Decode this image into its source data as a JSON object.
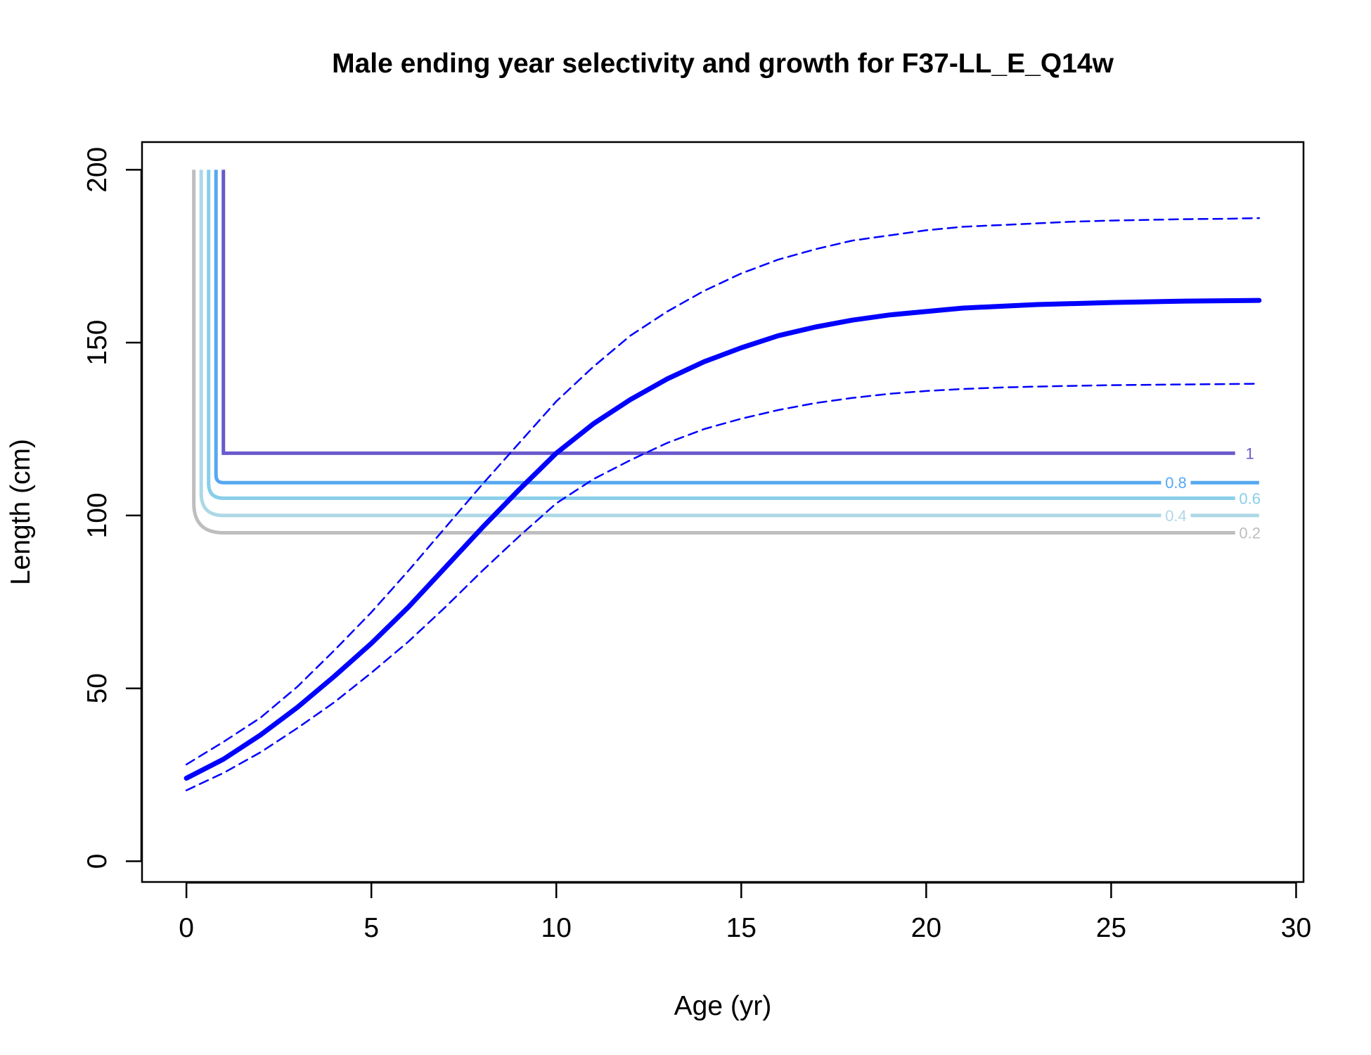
{
  "chart_data": {
    "type": "line",
    "title": "Male ending year selectivity and growth for F37-LL_E_Q14w",
    "xlabel": "Age (yr)",
    "ylabel": "Length (cm)",
    "xlim": [
      -1.2,
      30.2
    ],
    "ylim": [
      -6,
      208
    ],
    "xticks": [
      0,
      5,
      10,
      15,
      20,
      25,
      30
    ],
    "yticks": [
      0,
      50,
      100,
      150,
      200
    ],
    "grid": false,
    "legend": "none",
    "series": [
      {
        "role": "growth-mean",
        "color": "#0000FF",
        "style": "solid",
        "x": [
          0,
          1,
          2,
          3,
          4,
          5,
          6,
          7,
          8,
          9,
          10,
          11,
          12,
          13,
          14,
          15,
          16,
          17,
          18,
          19,
          20,
          21,
          22,
          23,
          24,
          25,
          26,
          27,
          28,
          29
        ],
        "y": [
          24,
          29.5,
          36.5,
          44.5,
          53.5,
          63,
          73.5,
          85,
          96.5,
          107.5,
          118,
          126.5,
          133.5,
          139.5,
          144.5,
          148.5,
          152,
          154.5,
          156.5,
          158,
          159,
          160,
          160.5,
          161,
          161.3,
          161.6,
          161.8,
          162,
          162.1,
          162.2
        ]
      },
      {
        "role": "growth-upper",
        "color": "#0000FF",
        "style": "dashed",
        "x": [
          0,
          1,
          2,
          3,
          4,
          5,
          6,
          7,
          8,
          9,
          10,
          11,
          12,
          13,
          14,
          15,
          16,
          17,
          18,
          19,
          20,
          21,
          22,
          23,
          24,
          25,
          26,
          27,
          28,
          29
        ],
        "y": [
          28,
          34.5,
          41.5,
          50.5,
          61,
          72,
          84,
          96.5,
          109,
          121,
          133,
          143,
          152,
          159,
          165,
          170,
          174,
          177,
          179.5,
          181,
          182.5,
          183.5,
          184,
          184.5,
          185,
          185.3,
          185.5,
          185.7,
          185.8,
          186
        ]
      },
      {
        "role": "growth-lower",
        "color": "#0000FF",
        "style": "dashed",
        "x": [
          0,
          1,
          2,
          3,
          4,
          5,
          6,
          7,
          8,
          9,
          10,
          11,
          12,
          13,
          14,
          15,
          16,
          17,
          18,
          19,
          20,
          21,
          22,
          23,
          24,
          25,
          26,
          27,
          28,
          29
        ],
        "y": [
          20.5,
          25.5,
          31.5,
          38.5,
          46,
          54.5,
          63.5,
          73.5,
          84,
          94,
          103.5,
          110.5,
          116,
          121,
          125,
          128,
          130.5,
          132.5,
          134,
          135.2,
          136,
          136.6,
          137,
          137.3,
          137.5,
          137.7,
          137.8,
          137.9,
          138,
          138.1
        ]
      }
    ],
    "contours": [
      {
        "level": "1",
        "color": "#6A5ACD",
        "x_start": 1.0,
        "length": 118,
        "x_end": 29.0,
        "label_at": 28.75
      },
      {
        "level": "0.8",
        "color": "#56A8F0",
        "x_start": 0.8,
        "length": 109.5,
        "x_end": 29.0,
        "label_at": 26.75
      },
      {
        "level": "0.6",
        "color": "#87CEEB",
        "x_start": 0.6,
        "length": 105,
        "x_end": 29.0,
        "label_at": 28.75
      },
      {
        "level": "0.4",
        "color": "#ADD8E6",
        "x_start": 0.4,
        "length": 100,
        "x_end": 29.0,
        "label_at": 26.75
      },
      {
        "level": "0.2",
        "color": "#BEBEBE",
        "x_start": 0.2,
        "length": 95,
        "x_end": 28.5,
        "label_at": 28.75
      }
    ],
    "contour_top": 200
  }
}
